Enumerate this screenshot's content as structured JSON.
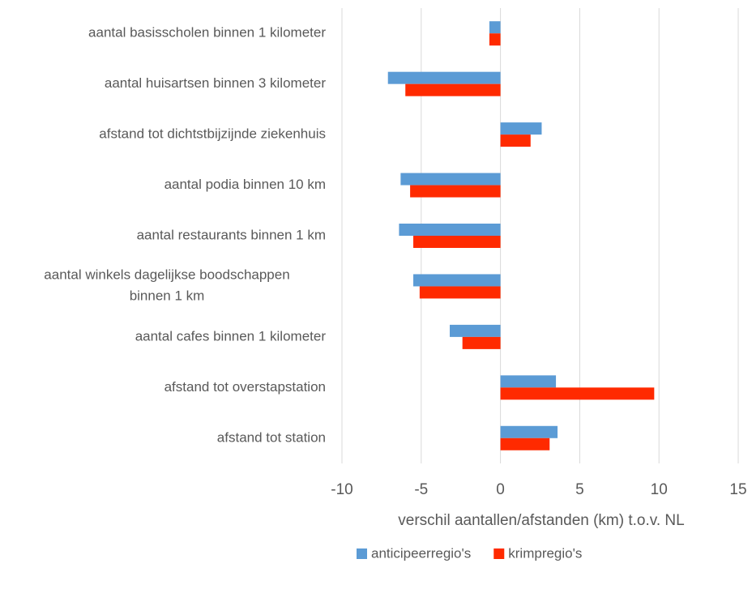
{
  "chart_data": {
    "type": "hbar",
    "categories": [
      "aantal basisscholen binnen 1 kilometer",
      "aantal huisartsen binnen 3 kilometer",
      "afstand tot dichtstbijzijnde ziekenhuis",
      "aantal podia binnen 10 km",
      "aantal restaurants binnen 1 km",
      "aantal winkels dagelijkse boodschappen\nbinnen 1 km",
      "aantal cafes binnen 1 kilometer",
      "afstand tot overstapstation",
      "afstand tot station"
    ],
    "series": [
      {
        "name": "anticipeerregio's",
        "color": "#5b9bd5",
        "values": [
          -0.7,
          -7.1,
          2.6,
          -6.3,
          -6.4,
          -5.5,
          -3.2,
          3.5,
          3.6
        ]
      },
      {
        "name": "krimpregio's",
        "color": "#ff2a00",
        "values": [
          -0.7,
          -6.0,
          1.9,
          -5.7,
          -5.5,
          -5.1,
          -2.4,
          9.7,
          3.1
        ]
      }
    ],
    "xlabel": "verschil aantallen/afstanden (km) t.o.v. NL",
    "xlim": [
      -10,
      15
    ],
    "xticks": [
      -10,
      -5,
      0,
      5,
      10,
      15
    ],
    "grid": true,
    "legend": "bottom"
  }
}
